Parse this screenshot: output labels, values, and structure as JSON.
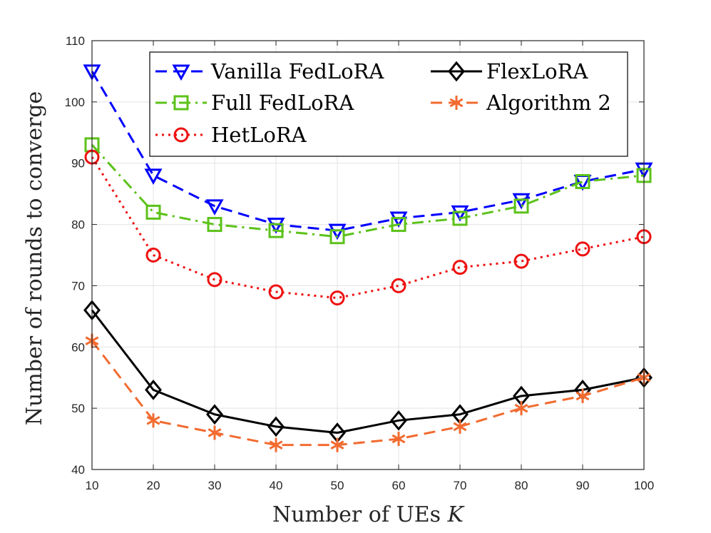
{
  "chart_data": {
    "type": "line",
    "title": "",
    "xlabel": "Number of UEs",
    "xlabel_var": "K",
    "ylabel": "Number of rounds to converge",
    "x": [
      10,
      20,
      30,
      40,
      50,
      60,
      70,
      80,
      90,
      100
    ],
    "xlim": [
      10,
      100
    ],
    "ylim": [
      40,
      110
    ],
    "xticks": [
      "10",
      "20",
      "30",
      "40",
      "50",
      "60",
      "70",
      "80",
      "90",
      "100"
    ],
    "yticks": [
      "40",
      "50",
      "60",
      "70",
      "80",
      "90",
      "100",
      "110"
    ],
    "grid": true,
    "legend_position": "top-right",
    "series": [
      {
        "name": "Vanilla FedLoRA",
        "color": "#0000ff",
        "dash": "dashed",
        "marker": "triangle-down",
        "values": [
          105,
          88,
          83,
          80,
          79,
          81,
          82,
          84,
          87,
          89
        ]
      },
      {
        "name": "Full FedLoRA",
        "color": "#5cc21a",
        "dash": "dashdot",
        "marker": "square",
        "values": [
          93,
          82,
          80,
          79,
          78,
          80,
          81,
          83,
          87,
          88
        ]
      },
      {
        "name": "HetLoRA",
        "color": "#ee1111",
        "dash": "dotted",
        "marker": "circle",
        "values": [
          91,
          75,
          71,
          69,
          68,
          70,
          73,
          74,
          76,
          78
        ]
      },
      {
        "name": "FlexLoRA",
        "color": "#000000",
        "dash": "solid",
        "marker": "diamond",
        "values": [
          66,
          53,
          49,
          47,
          46,
          48,
          49,
          52,
          53,
          55
        ]
      },
      {
        "name": "Algorithm 2",
        "color": "#f26b30",
        "dash": "dashed",
        "marker": "asterisk",
        "values": [
          61,
          48,
          46,
          44,
          44,
          45,
          47,
          50,
          52,
          55
        ]
      }
    ]
  }
}
